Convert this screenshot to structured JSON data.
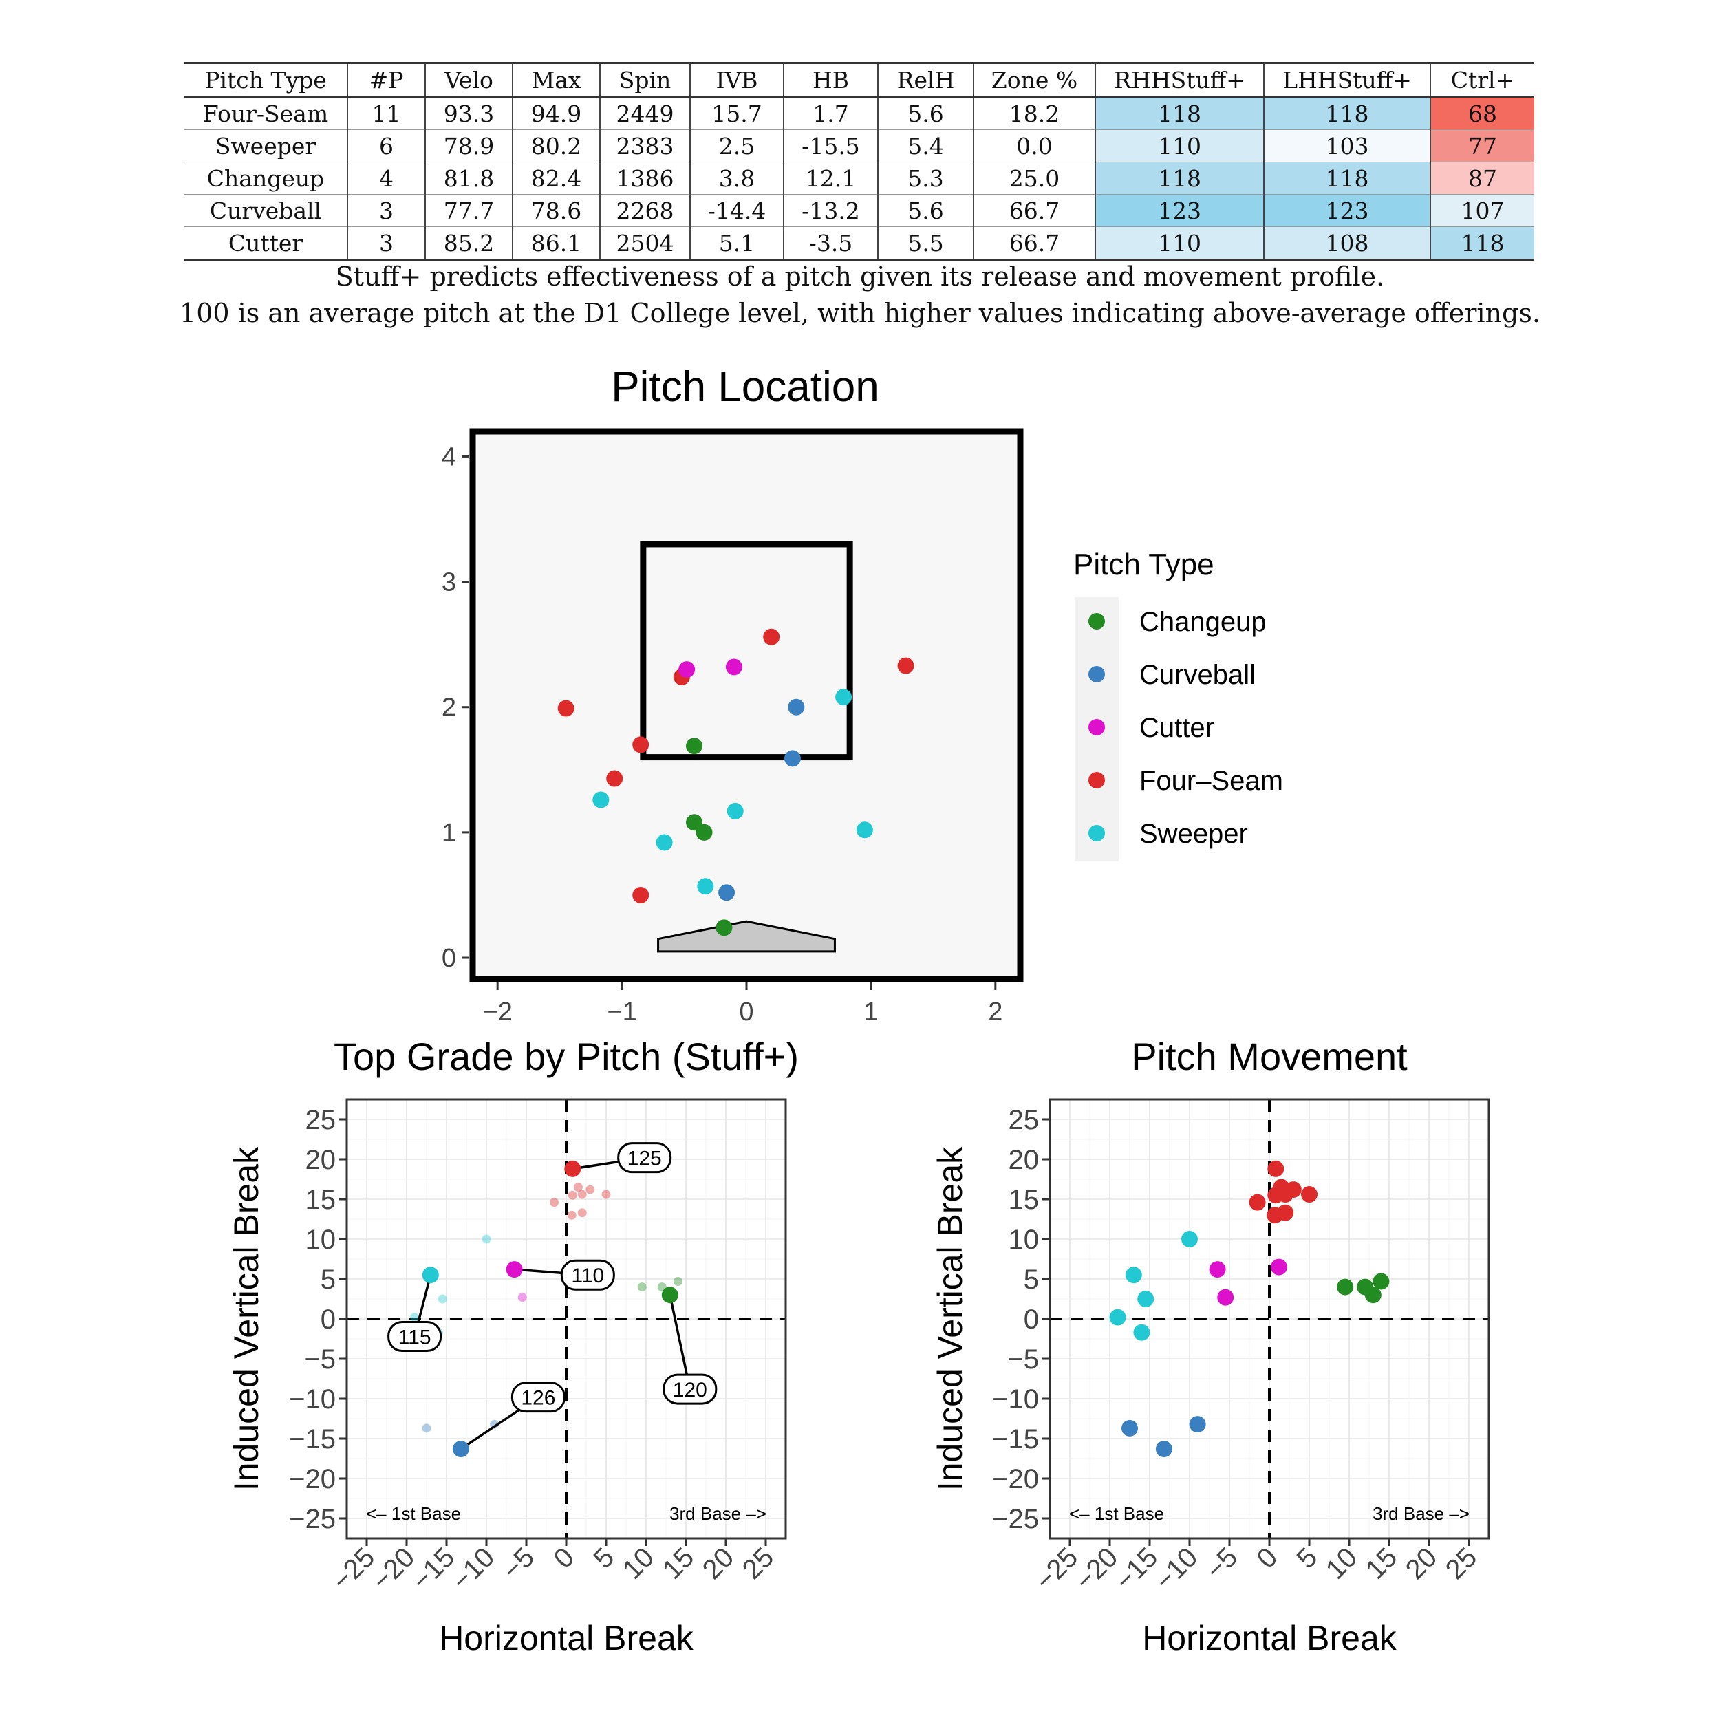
{
  "table": {
    "headers": [
      "Pitch Type",
      "#P",
      "Velo",
      "Max",
      "Spin",
      "IVB",
      "HB",
      "RelH",
      "Zone %",
      "RHHStuff+",
      "LHHStuff+",
      "Ctrl+"
    ],
    "rows": [
      [
        "Four-Seam",
        "11",
        "93.3",
        "94.9",
        "2449",
        "15.7",
        "1.7",
        "5.6",
        "18.2",
        "118",
        "118",
        "68"
      ],
      [
        "Sweeper",
        "6",
        "78.9",
        "80.2",
        "2383",
        "2.5",
        "-15.5",
        "5.4",
        "0.0",
        "110",
        "103",
        "77"
      ],
      [
        "Changeup",
        "4",
        "81.8",
        "82.4",
        "1386",
        "3.8",
        "12.1",
        "5.3",
        "25.0",
        "118",
        "118",
        "87"
      ],
      [
        "Curveball",
        "3",
        "77.7",
        "78.6",
        "2268",
        "-14.4",
        "-13.2",
        "5.6",
        "66.7",
        "123",
        "123",
        "107"
      ],
      [
        "Cutter",
        "3",
        "85.2",
        "86.1",
        "2504",
        "5.1",
        "-3.5",
        "5.5",
        "66.7",
        "110",
        "108",
        "118"
      ]
    ],
    "cell_colors": [
      [
        "",
        "",
        "",
        "",
        "",
        "",
        "",
        "",
        "",
        "#aedcee",
        "#aedcee",
        "#f36b5e"
      ],
      [
        "",
        "",
        "",
        "",
        "",
        "",
        "",
        "",
        "",
        "#d5ebf5",
        "#f3f9fc",
        "#f3908a"
      ],
      [
        "",
        "",
        "",
        "",
        "",
        "",
        "",
        "",
        "",
        "#aedcee",
        "#aedcee",
        "#fac5c2"
      ],
      [
        "",
        "",
        "",
        "",
        "",
        "",
        "",
        "",
        "",
        "#94d3ec",
        "#94d3ec",
        "#e1f0f7"
      ],
      [
        "",
        "",
        "",
        "",
        "",
        "",
        "",
        "",
        "",
        "#d5ebf5",
        "#d1e9f4",
        "#aedcee"
      ]
    ]
  },
  "captions": [
    "Stuff+ predicts effectiveness of a pitch given its release and movement profile.",
    "100 is an average pitch at the D1 College level, with higher values indicating above-average offerings."
  ],
  "colors": {
    "Changeup": "#228b22",
    "Curveball": "#3a7fbf",
    "Cutter": "#dd11cc",
    "Four-Seam": "#dd2a2a",
    "Sweeper": "#22c8d2"
  },
  "legend": {
    "title": "Pitch Type",
    "items": [
      "Changeup",
      "Curveball",
      "Cutter",
      "Four–Seam",
      "Sweeper"
    ],
    "keys": [
      "Changeup",
      "Curveball",
      "Cutter",
      "Four-Seam",
      "Sweeper"
    ]
  },
  "chart_data": [
    {
      "id": "pitch-location",
      "type": "scatter",
      "title": "Pitch Location",
      "xlim": [
        -2.2,
        2.2
      ],
      "ylim": [
        -0.17,
        4.2
      ],
      "xticks": [
        -2,
        -1,
        0,
        1,
        2
      ],
      "xtick_labels": [
        "−2",
        "−1",
        "0",
        "1",
        "2"
      ],
      "yticks": [
        0,
        1,
        2,
        3,
        4
      ],
      "grid": false,
      "strike_zone": {
        "x": [
          -0.83,
          0.83
        ],
        "y": [
          1.6,
          3.3
        ]
      },
      "home_plate": [
        [
          -0.71,
          0.05
        ],
        [
          -0.71,
          0.15
        ],
        [
          0,
          0.29
        ],
        [
          0.71,
          0.15
        ],
        [
          0.71,
          0.05
        ]
      ],
      "points": [
        {
          "type": "Four-Seam",
          "x": 0.2,
          "y": 2.56
        },
        {
          "type": "Four-Seam",
          "x": 1.28,
          "y": 2.33
        },
        {
          "type": "Four-Seam",
          "x": -0.52,
          "y": 2.24
        },
        {
          "type": "Four-Seam",
          "x": -1.45,
          "y": 1.99
        },
        {
          "type": "Four-Seam",
          "x": -0.85,
          "y": 1.7
        },
        {
          "type": "Four-Seam",
          "x": -1.06,
          "y": 1.43
        },
        {
          "type": "Four-Seam",
          "x": -0.85,
          "y": 0.5
        },
        {
          "type": "Cutter",
          "x": -0.48,
          "y": 2.3
        },
        {
          "type": "Cutter",
          "x": -0.1,
          "y": 2.32
        },
        {
          "type": "Curveball",
          "x": 0.4,
          "y": 2.0
        },
        {
          "type": "Curveball",
          "x": 0.37,
          "y": 1.59
        },
        {
          "type": "Curveball",
          "x": -0.16,
          "y": 0.52
        },
        {
          "type": "Sweeper",
          "x": 0.78,
          "y": 2.08
        },
        {
          "type": "Sweeper",
          "x": -1.17,
          "y": 1.26
        },
        {
          "type": "Sweeper",
          "x": -0.09,
          "y": 1.17
        },
        {
          "type": "Sweeper",
          "x": 0.95,
          "y": 1.02
        },
        {
          "type": "Sweeper",
          "x": -0.66,
          "y": 0.92
        },
        {
          "type": "Sweeper",
          "x": -0.33,
          "y": 0.57
        },
        {
          "type": "Changeup",
          "x": -0.42,
          "y": 1.69
        },
        {
          "type": "Changeup",
          "x": -0.42,
          "y": 1.08
        },
        {
          "type": "Changeup",
          "x": -0.34,
          "y": 1.0
        },
        {
          "type": "Changeup",
          "x": -0.18,
          "y": 0.24
        }
      ]
    },
    {
      "id": "top-grade",
      "type": "scatter",
      "title": "Top Grade by Pitch (Stuff+)",
      "xlabel": "Horizontal Break",
      "ylabel": "Induced Vertical Break",
      "xlim": [
        -27.5,
        27.5
      ],
      "ylim": [
        -27.5,
        27.5
      ],
      "ticks": [
        -25,
        -20,
        -15,
        -10,
        -5,
        0,
        5,
        10,
        15,
        20,
        25
      ],
      "tick_labels": [
        "−25",
        "−20",
        "−15",
        "−10",
        "−5",
        "0",
        "5",
        "10",
        "15",
        "20",
        "25"
      ],
      "grid": true,
      "annotations": {
        "left": "<– 1st Base",
        "right": "3rd Base –>"
      },
      "faint_points": [
        {
          "type": "Four-Seam",
          "x": 1.5,
          "y": 16.5
        },
        {
          "type": "Four-Seam",
          "x": 3,
          "y": 16.2
        },
        {
          "type": "Four-Seam",
          "x": 0.8,
          "y": 15.5
        },
        {
          "type": "Four-Seam",
          "x": 2,
          "y": 15.6
        },
        {
          "type": "Four-Seam",
          "x": 5,
          "y": 15.6
        },
        {
          "type": "Four-Seam",
          "x": -1.5,
          "y": 14.6
        },
        {
          "type": "Four-Seam",
          "x": 0.7,
          "y": 13
        },
        {
          "type": "Four-Seam",
          "x": 2,
          "y": 13.3
        },
        {
          "type": "Sweeper",
          "x": -10,
          "y": 10
        },
        {
          "type": "Sweeper",
          "x": -15.5,
          "y": 2.5
        },
        {
          "type": "Sweeper",
          "x": -19,
          "y": 0.2
        },
        {
          "type": "Sweeper",
          "x": -16,
          "y": -1.7
        },
        {
          "type": "Cutter",
          "x": -5.5,
          "y": 2.7
        },
        {
          "type": "Changeup",
          "x": 9.5,
          "y": 4
        },
        {
          "type": "Changeup",
          "x": 12,
          "y": 4
        },
        {
          "type": "Changeup",
          "x": 14,
          "y": 4.7
        },
        {
          "type": "Curveball",
          "x": -17.5,
          "y": -13.7
        },
        {
          "type": "Curveball",
          "x": -9,
          "y": -13.2
        }
      ],
      "top_points": [
        {
          "type": "Four-Seam",
          "x": 0.8,
          "y": 18.8,
          "label": "125",
          "lx": 9.8,
          "ly": 20.2
        },
        {
          "type": "Sweeper",
          "x": -17,
          "y": 5.5,
          "label": "115",
          "lx": -19,
          "ly": -2.2
        },
        {
          "type": "Cutter",
          "x": -6.5,
          "y": 6.2,
          "label": "110",
          "lx": 2.7,
          "ly": 5.5
        },
        {
          "type": "Changeup",
          "x": 13,
          "y": 3,
          "label": "120",
          "lx": 15.5,
          "ly": -8.8
        },
        {
          "type": "Curveball",
          "x": -13.2,
          "y": -16.3,
          "label": "126",
          "lx": -3.5,
          "ly": -9.8
        }
      ]
    },
    {
      "id": "pitch-movement",
      "type": "scatter",
      "title": "Pitch Movement",
      "xlabel": "Horizontal Break",
      "ylabel": "Induced Vertical Break",
      "xlim": [
        -27.5,
        27.5
      ],
      "ylim": [
        -27.5,
        27.5
      ],
      "ticks": [
        -25,
        -20,
        -15,
        -10,
        -5,
        0,
        5,
        10,
        15,
        20,
        25
      ],
      "tick_labels": [
        "−25",
        "−20",
        "−15",
        "−10",
        "−5",
        "0",
        "5",
        "10",
        "15",
        "20",
        "25"
      ],
      "grid": true,
      "annotations": {
        "left": "<– 1st Base",
        "right": "3rd Base –>"
      },
      "points": [
        {
          "type": "Four-Seam",
          "x": 0.8,
          "y": 18.8
        },
        {
          "type": "Four-Seam",
          "x": 1.5,
          "y": 16.5
        },
        {
          "type": "Four-Seam",
          "x": 3,
          "y": 16.2
        },
        {
          "type": "Four-Seam",
          "x": 0.8,
          "y": 15.5
        },
        {
          "type": "Four-Seam",
          "x": 2,
          "y": 15.6
        },
        {
          "type": "Four-Seam",
          "x": 5,
          "y": 15.6
        },
        {
          "type": "Four-Seam",
          "x": -1.5,
          "y": 14.6
        },
        {
          "type": "Four-Seam",
          "x": 0.7,
          "y": 13
        },
        {
          "type": "Four-Seam",
          "x": 2,
          "y": 13.3
        },
        {
          "type": "Sweeper",
          "x": -10,
          "y": 10
        },
        {
          "type": "Sweeper",
          "x": -17,
          "y": 5.5
        },
        {
          "type": "Sweeper",
          "x": -15.5,
          "y": 2.5
        },
        {
          "type": "Sweeper",
          "x": -19,
          "y": 0.2
        },
        {
          "type": "Sweeper",
          "x": -16,
          "y": -1.7
        },
        {
          "type": "Cutter",
          "x": -6.5,
          "y": 6.2
        },
        {
          "type": "Cutter",
          "x": 1.2,
          "y": 6.5
        },
        {
          "type": "Cutter",
          "x": -5.5,
          "y": 2.7
        },
        {
          "type": "Changeup",
          "x": 9.5,
          "y": 4
        },
        {
          "type": "Changeup",
          "x": 12,
          "y": 4
        },
        {
          "type": "Changeup",
          "x": 14,
          "y": 4.7
        },
        {
          "type": "Changeup",
          "x": 13,
          "y": 3
        },
        {
          "type": "Curveball",
          "x": -17.5,
          "y": -13.7
        },
        {
          "type": "Curveball",
          "x": -13.2,
          "y": -16.3
        },
        {
          "type": "Curveball",
          "x": -9,
          "y": -13.2
        }
      ]
    }
  ]
}
